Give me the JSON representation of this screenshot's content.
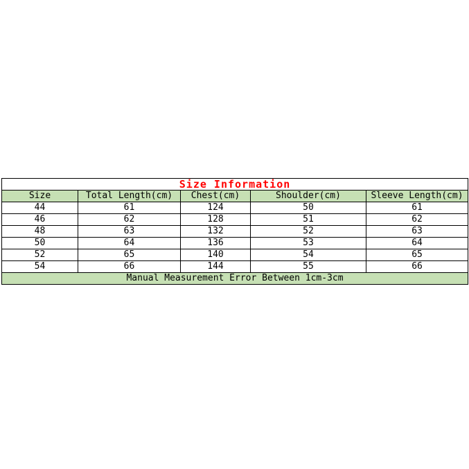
{
  "chart_data": {
    "type": "table",
    "title": "Size Information",
    "columns": [
      "Size",
      "Total Length(cm)",
      "Chest(cm)",
      "Shoulder(cm)",
      "Sleeve Length(cm)"
    ],
    "rows": [
      [
        "44",
        "61",
        "124",
        "50",
        "61"
      ],
      [
        "46",
        "62",
        "128",
        "51",
        "62"
      ],
      [
        "48",
        "63",
        "132",
        "52",
        "63"
      ],
      [
        "50",
        "64",
        "136",
        "53",
        "64"
      ],
      [
        "52",
        "65",
        "140",
        "54",
        "65"
      ],
      [
        "54",
        "66",
        "144",
        "55",
        "66"
      ]
    ],
    "footer_note": "Manual Measurement Error Between 1cm-3cm"
  },
  "colors": {
    "title_text": "#ff0000",
    "band_bg": "#c6e0b4",
    "border": "#000000",
    "page_bg": "#ffffff"
  }
}
